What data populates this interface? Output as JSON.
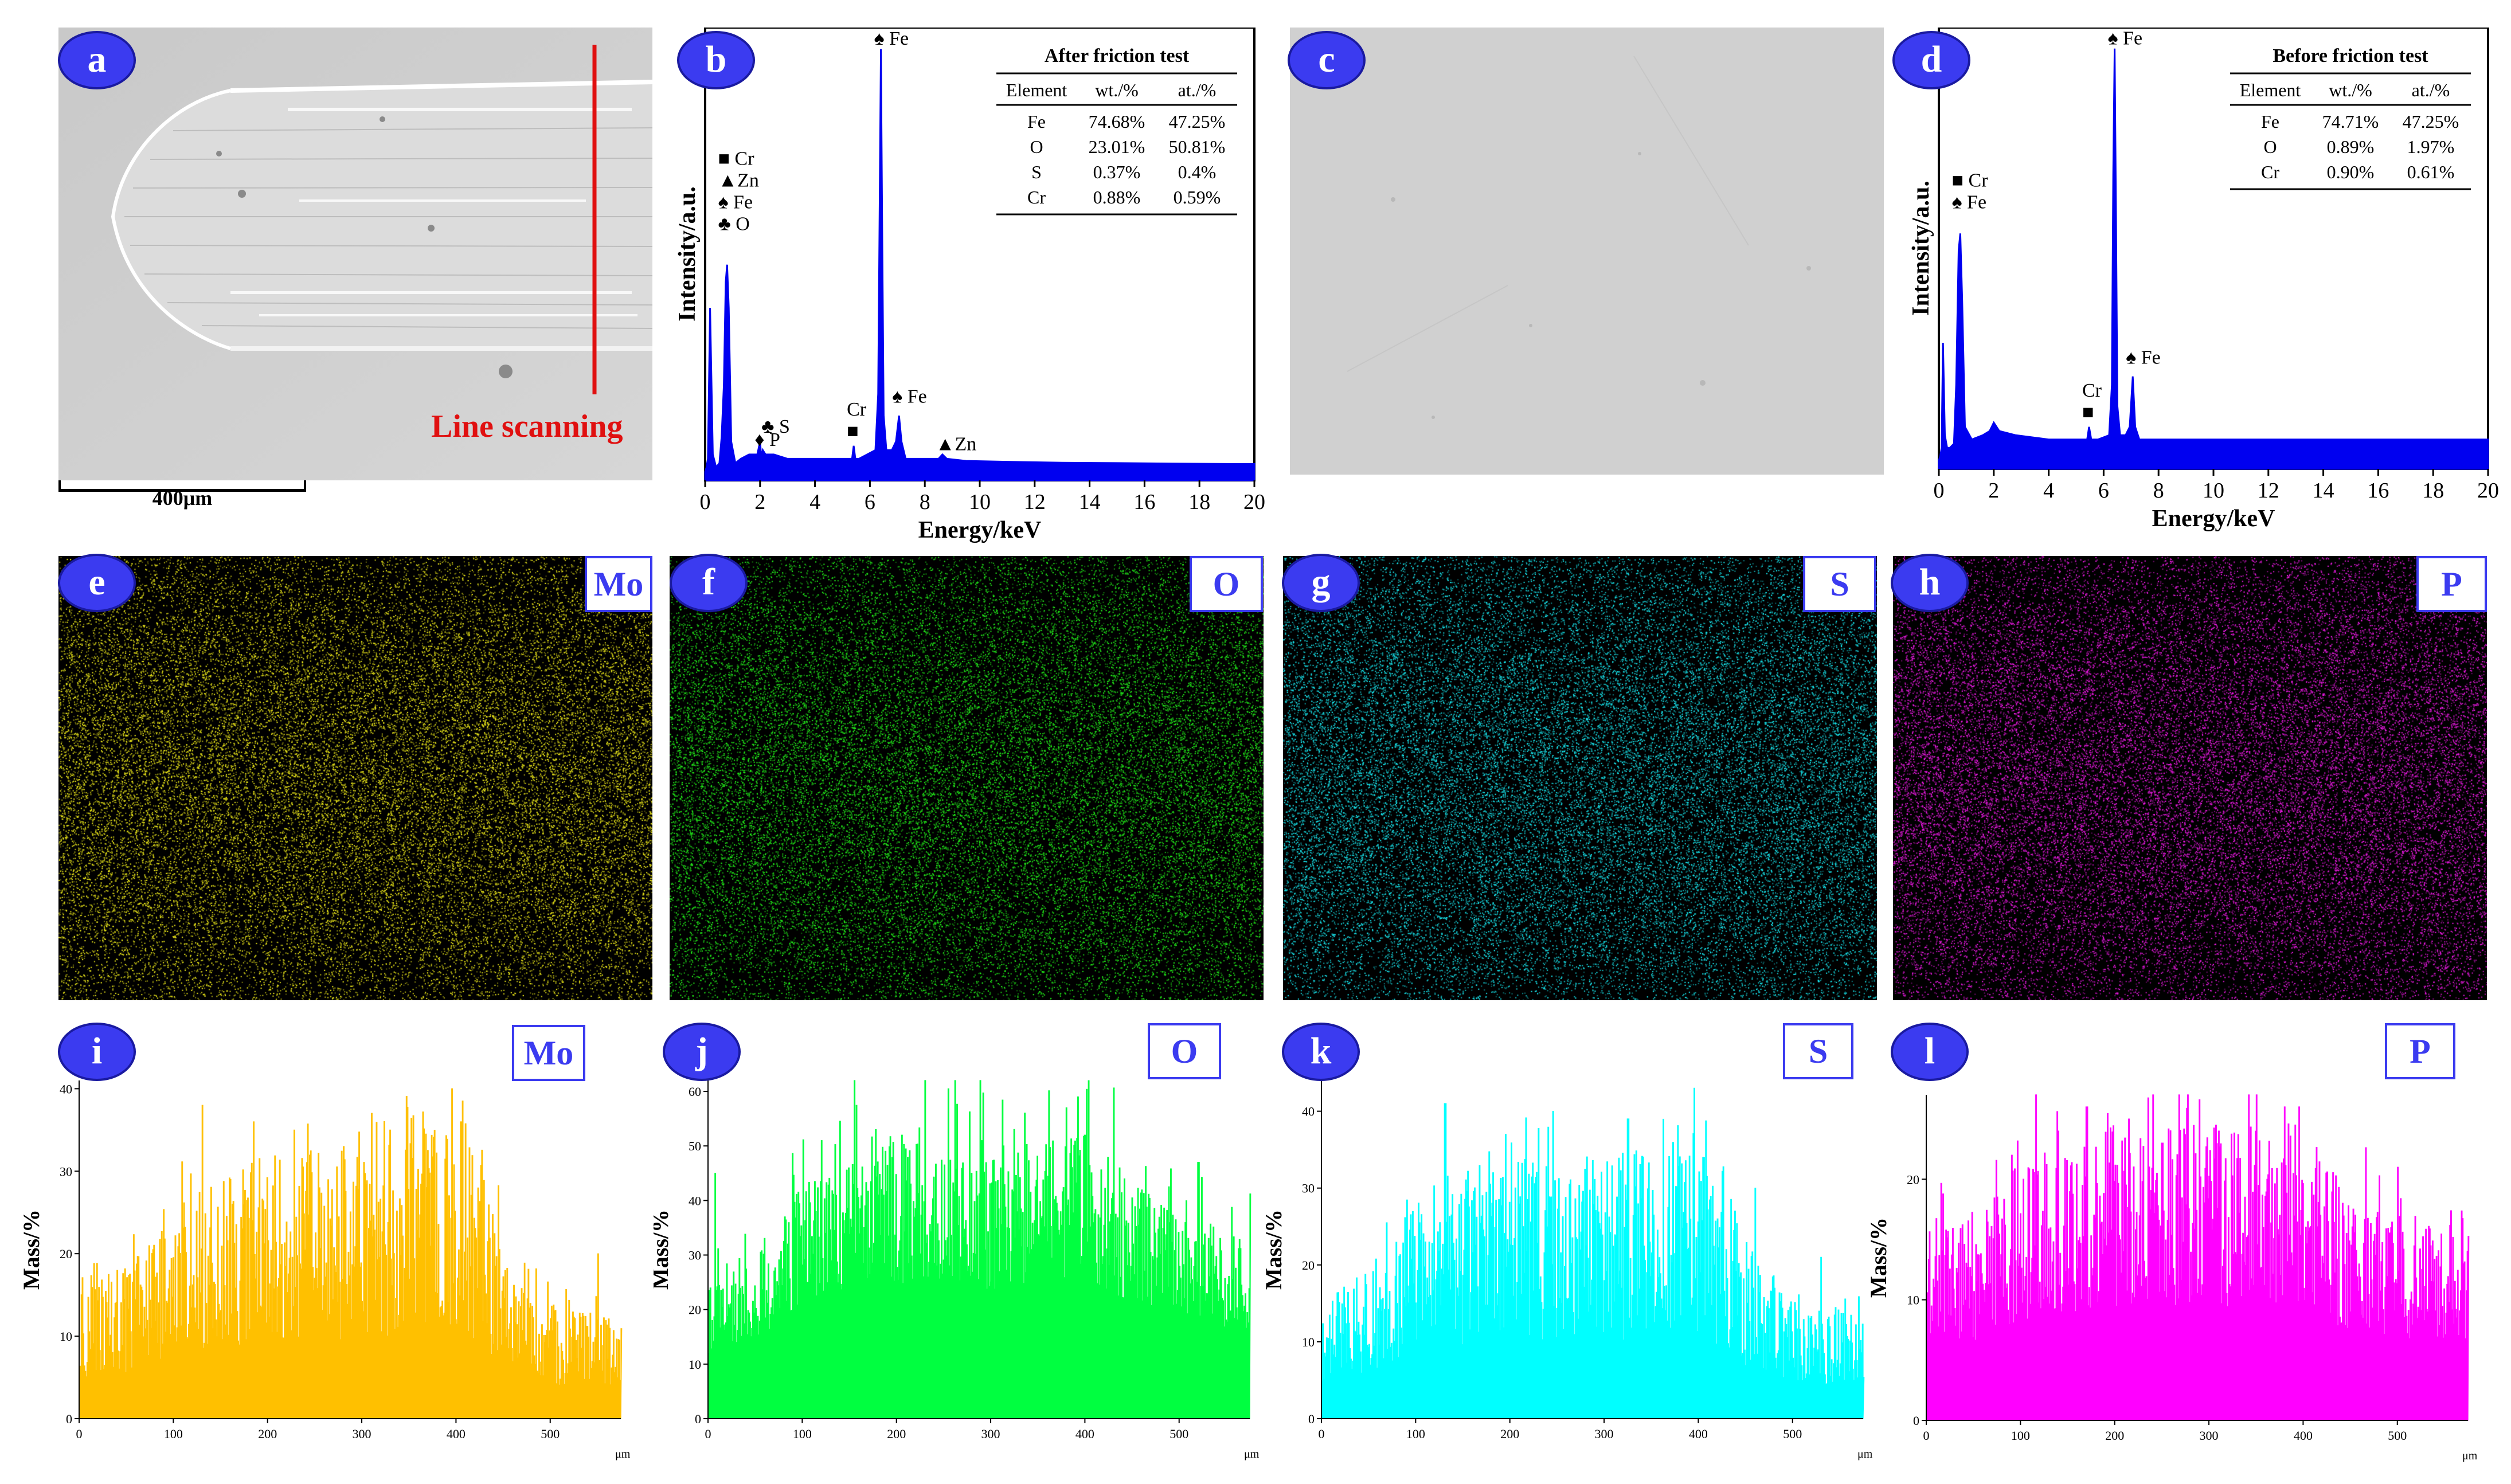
{
  "panels": {
    "a": {
      "letter": "a",
      "annotation": "Line scanning",
      "scale_bar": "400μm",
      "line_color": "#e01010"
    },
    "b": {
      "letter": "b"
    },
    "c": {
      "letter": "c"
    },
    "d": {
      "letter": "d"
    },
    "e": {
      "letter": "e",
      "element": "Mo",
      "dot_color": "#e6e21a"
    },
    "f": {
      "letter": "f",
      "element": "O",
      "dot_color": "#22e81a"
    },
    "g": {
      "letter": "g",
      "element": "S",
      "dot_color": "#18e0e8"
    },
    "h": {
      "letter": "h",
      "element": "P",
      "dot_color": "#e81ae0"
    },
    "i": {
      "letter": "i",
      "element": "Mo"
    },
    "j": {
      "letter": "j",
      "element": "O"
    },
    "k": {
      "letter": "k",
      "element": "S"
    },
    "l": {
      "letter": "l",
      "element": "P"
    }
  },
  "colors": {
    "badge": "#3b3bf0",
    "spectrum": "#0000f0",
    "Mo_line": "#ffc000",
    "O_line": "#00ff40",
    "S_line": "#00ffff",
    "P_line": "#ff00ff"
  },
  "chart_data": [
    {
      "id": "b",
      "type": "line",
      "xlabel": "Energy/keV",
      "ylabel": "Intensity/a.u.",
      "xlim": [
        0,
        20
      ],
      "xticks": [
        0,
        2,
        4,
        6,
        8,
        10,
        12,
        14,
        16,
        18,
        20
      ],
      "x": [
        0.0,
        0.05,
        0.1,
        0.18,
        0.28,
        0.4,
        0.52,
        0.6,
        0.68,
        0.75,
        0.8,
        0.86,
        0.95,
        1.1,
        1.3,
        1.6,
        1.9,
        2.0,
        2.05,
        2.1,
        2.2,
        2.3,
        2.5,
        3.0,
        4.0,
        5.0,
        5.35,
        5.41,
        5.47,
        5.6,
        6.2,
        6.3,
        6.35,
        6.4,
        6.45,
        6.5,
        6.6,
        6.8,
        6.95,
        7.06,
        7.15,
        7.3,
        8.0,
        8.5,
        8.64,
        8.8,
        9.5,
        11,
        13,
        15,
        17,
        19,
        20
      ],
      "y": [
        2,
        3,
        5,
        40,
        6,
        3,
        4,
        10,
        22,
        46,
        50,
        40,
        9,
        4,
        5,
        6,
        6,
        9,
        5,
        7,
        6,
        6,
        6,
        5,
        5,
        5,
        5,
        8,
        5,
        5,
        7,
        20,
        60,
        100,
        55,
        15,
        7,
        7,
        9,
        15,
        9,
        5,
        5,
        5,
        6,
        5,
        4.5,
        4.3,
        4.1,
        4,
        3.9,
        3.8,
        3.8
      ],
      "ylim": [
        0,
        105
      ],
      "peak_labels": [
        {
          "x": 0.72,
          "y": 58,
          "lines": [
            "■ Cr",
            "▲Zn",
            "♠ Fe",
            "♣ O"
          ]
        },
        {
          "x": 2.3,
          "y": 11,
          "lines": [
            "♣ S"
          ]
        },
        {
          "x": 2.05,
          "y": 8,
          "lines": [
            "♦ P"
          ]
        },
        {
          "x": 5.41,
          "y": 10,
          "lines": [
            "Cr",
            "■"
          ]
        },
        {
          "x": 6.4,
          "y": 101,
          "lines": [
            "♠ Fe"
          ]
        },
        {
          "x": 7.06,
          "y": 18,
          "lines": [
            "♠ Fe"
          ]
        },
        {
          "x": 8.64,
          "y": 7,
          "lines": [
            "▲Zn"
          ]
        }
      ],
      "table": {
        "title": "After friction test",
        "columns": [
          "Element",
          "wt./%",
          "at./%"
        ],
        "rows": [
          [
            "Fe",
            "74.68%",
            "47.25%"
          ],
          [
            "O",
            "23.01%",
            "50.81%"
          ],
          [
            "S",
            "0.37%",
            "0.4%"
          ],
          [
            "Cr",
            "0.88%",
            "0.59%"
          ]
        ]
      }
    },
    {
      "id": "d",
      "type": "line",
      "xlabel": "Energy/keV",
      "ylabel": "Intensity/a.u.",
      "xlim": [
        0,
        20
      ],
      "xticks": [
        0,
        2,
        4,
        6,
        8,
        10,
        12,
        14,
        16,
        18,
        20
      ],
      "x": [
        0.0,
        0.05,
        0.1,
        0.15,
        0.22,
        0.3,
        0.4,
        0.55,
        0.63,
        0.72,
        0.78,
        0.85,
        0.95,
        1.2,
        1.6,
        1.85,
        2.0,
        2.2,
        2.8,
        4.0,
        5.0,
        5.4,
        5.47,
        5.55,
        5.8,
        6.2,
        6.3,
        6.35,
        6.4,
        6.45,
        6.5,
        6.6,
        6.8,
        6.95,
        7.06,
        7.15,
        7.3,
        8,
        10,
        12,
        14,
        16,
        18,
        20
      ],
      "y": [
        2,
        3,
        5,
        30,
        8,
        5,
        5,
        6,
        20,
        52,
        56,
        40,
        10,
        7,
        8,
        9,
        11,
        9,
        8,
        7,
        7,
        7,
        10,
        7,
        7,
        8,
        20,
        70,
        100,
        60,
        15,
        8,
        8,
        10,
        22,
        10,
        7,
        7,
        7,
        7,
        7,
        7,
        7,
        7
      ],
      "ylim": [
        0,
        105
      ],
      "peak_labels": [
        {
          "x": 0.72,
          "y": 62,
          "lines": [
            "■ Cr",
            "♠ Fe"
          ]
        },
        {
          "x": 5.47,
          "y": 12,
          "lines": [
            "Cr",
            "■"
          ]
        },
        {
          "x": 6.4,
          "y": 101,
          "lines": [
            "♠ Fe"
          ]
        },
        {
          "x": 7.06,
          "y": 25,
          "lines": [
            "♠ Fe"
          ]
        }
      ],
      "table": {
        "title": "Before friction test",
        "columns": [
          "Element",
          "wt./%",
          "at./%"
        ],
        "rows": [
          [
            "Fe",
            "74.71%",
            "47.25%"
          ],
          [
            "O",
            "0.89%",
            "1.97%"
          ],
          [
            "Cr",
            "0.90%",
            "0.61%"
          ]
        ]
      }
    },
    {
      "id": "i",
      "type": "bar",
      "series_name": "Mo",
      "ylabel": "Mass/%",
      "xunit": "μm",
      "xlim": [
        0,
        575
      ],
      "ylim": [
        0,
        41
      ],
      "xticks": [
        0,
        100,
        200,
        300,
        400,
        500
      ],
      "yticks": [
        0,
        10,
        20,
        30,
        40
      ],
      "profile": [
        [
          0,
          11
        ],
        [
          50,
          12
        ],
        [
          100,
          17
        ],
        [
          200,
          21
        ],
        [
          300,
          21
        ],
        [
          350,
          22
        ],
        [
          400,
          24
        ],
        [
          450,
          15
        ],
        [
          500,
          9
        ],
        [
          575,
          8
        ]
      ],
      "peaks": [
        [
          130,
          38
        ],
        [
          185,
          36
        ],
        [
          228,
          35
        ],
        [
          280,
          33
        ],
        [
          330,
          35
        ],
        [
          395,
          40
        ],
        [
          405,
          36
        ],
        [
          255,
          28
        ],
        [
          550,
          20
        ]
      ],
      "seed": 11,
      "noise": 0.55
    },
    {
      "id": "j",
      "type": "bar",
      "series_name": "O",
      "ylabel": "Mass/%",
      "xunit": "μm",
      "xlim": [
        0,
        575
      ],
      "ylim": [
        0,
        62
      ],
      "xticks": [
        0,
        100,
        200,
        300,
        400,
        500
      ],
      "yticks": [
        0,
        10,
        20,
        30,
        40,
        50,
        60
      ],
      "profile": [
        [
          0,
          18
        ],
        [
          50,
          22
        ],
        [
          100,
          32
        ],
        [
          200,
          38
        ],
        [
          300,
          36
        ],
        [
          400,
          40
        ],
        [
          450,
          32
        ],
        [
          500,
          28
        ],
        [
          575,
          24
        ]
      ],
      "peaks": [
        [
          7,
          45
        ],
        [
          120,
          51
        ],
        [
          178,
          53
        ],
        [
          205,
          52
        ],
        [
          290,
          51
        ],
        [
          380,
          57
        ],
        [
          392,
          59
        ],
        [
          400,
          52
        ],
        [
          520,
          47
        ]
      ],
      "seed": 23,
      "noise": 0.35
    },
    {
      "id": "k",
      "type": "bar",
      "series_name": "S",
      "ylabel": "Mass/%",
      "xunit": "μm",
      "xlim": [
        0,
        575
      ],
      "ylim": [
        0,
        44
      ],
      "xticks": [
        0,
        100,
        200,
        300,
        400,
        500
      ],
      "yticks": [
        0,
        10,
        20,
        30,
        40
      ],
      "profile": [
        [
          0,
          10
        ],
        [
          50,
          13
        ],
        [
          100,
          19
        ],
        [
          200,
          22
        ],
        [
          300,
          22
        ],
        [
          400,
          23
        ],
        [
          450,
          15
        ],
        [
          500,
          10
        ],
        [
          575,
          9
        ]
      ],
      "peaks": [
        [
          131,
          41
        ],
        [
          195,
          37
        ],
        [
          245,
          40
        ],
        [
          325,
          39
        ],
        [
          395,
          43
        ],
        [
          405,
          34
        ],
        [
          460,
          30
        ],
        [
          530,
          21
        ]
      ],
      "seed": 37,
      "noise": 0.55
    },
    {
      "id": "l",
      "type": "bar",
      "series_name": "P",
      "ylabel": "Mass/%",
      "xunit": "μm",
      "xlim": [
        0,
        575
      ],
      "ylim": [
        0,
        27
      ],
      "xticks": [
        0,
        100,
        200,
        300,
        400,
        500
      ],
      "yticks": [
        0,
        10,
        20
      ],
      "profile": [
        [
          0,
          11
        ],
        [
          50,
          12
        ],
        [
          100,
          15
        ],
        [
          200,
          17
        ],
        [
          300,
          17
        ],
        [
          400,
          17
        ],
        [
          450,
          13
        ],
        [
          500,
          12
        ],
        [
          575,
          12
        ]
      ],
      "peaks": [
        [
          90,
          22
        ],
        [
          140,
          24
        ],
        [
          170,
          26
        ],
        [
          215,
          25
        ],
        [
          250,
          23
        ],
        [
          310,
          24
        ],
        [
          380,
          26
        ],
        [
          395,
          26
        ],
        [
          500,
          21
        ]
      ],
      "seed": 53,
      "noise": 0.45
    }
  ]
}
